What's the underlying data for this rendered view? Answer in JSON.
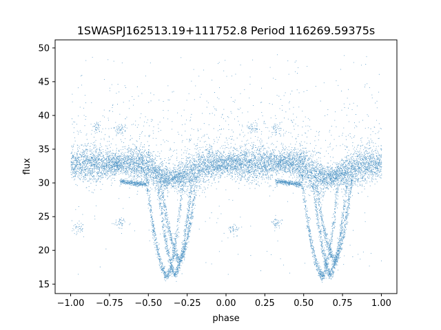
{
  "chart_data": {
    "type": "scatter",
    "title": "1SWASPJ162513.19+111752.8 Period 116269.59375s",
    "xlabel": "phase",
    "ylabel": "flux",
    "xlim": [
      -1.1,
      1.1
    ],
    "ylim": [
      13.6,
      51.2
    ],
    "x_ticks": [
      -1.0,
      -0.75,
      -0.5,
      -0.25,
      0.0,
      0.25,
      0.5,
      0.75,
      1.0
    ],
    "x_tick_labels": [
      "−1.00",
      "−0.75",
      "−0.50",
      "−0.25",
      "0.00",
      "0.25",
      "0.50",
      "0.75",
      "1.00"
    ],
    "y_ticks": [
      15,
      20,
      25,
      30,
      35,
      40,
      45,
      50
    ],
    "y_tick_labels": [
      "15",
      "20",
      "25",
      "30",
      "35",
      "40",
      "45",
      "50"
    ],
    "grid": false,
    "marker_color": "#1f77b4",
    "series": [
      {
        "description_points": "phase-folded light curve (repeated over two cycles)",
        "baseline": [
          {
            "x": -1.0,
            "y": 32.8
          },
          {
            "x": -0.8,
            "y": 32.7
          },
          {
            "x": -0.6,
            "y": 33.0
          },
          {
            "x": -0.5,
            "y": 32.6
          },
          {
            "x": -0.45,
            "y": 31.2
          },
          {
            "x": -0.38,
            "y": 30.6
          },
          {
            "x": -0.3,
            "y": 31.0
          },
          {
            "x": -0.2,
            "y": 32.0
          },
          {
            "x": -0.1,
            "y": 32.7
          },
          {
            "x": 0.0,
            "y": 32.9
          },
          {
            "x": 0.2,
            "y": 32.8
          },
          {
            "x": 0.4,
            "y": 33.1
          },
          {
            "x": 0.5,
            "y": 32.6
          },
          {
            "x": 0.55,
            "y": 31.2
          },
          {
            "x": 0.62,
            "y": 30.6
          },
          {
            "x": 0.7,
            "y": 31.0
          },
          {
            "x": 0.8,
            "y": 32.0
          },
          {
            "x": 0.9,
            "y": 32.6
          },
          {
            "x": 1.0,
            "y": 32.9
          }
        ],
        "eclipse_minima": [
          {
            "x": -0.38,
            "y": 16.2
          },
          {
            "x": -0.33,
            "y": 16.5
          },
          {
            "x": 0.62,
            "y": 16.2
          },
          {
            "x": 0.67,
            "y": 16.5
          }
        ],
        "low_branch": [
          {
            "x": -0.68,
            "y": 30.3
          },
          {
            "x": -0.52,
            "y": 29.8
          },
          {
            "x": 0.32,
            "y": 30.3
          },
          {
            "x": 0.48,
            "y": 29.8
          }
        ]
      }
    ]
  }
}
